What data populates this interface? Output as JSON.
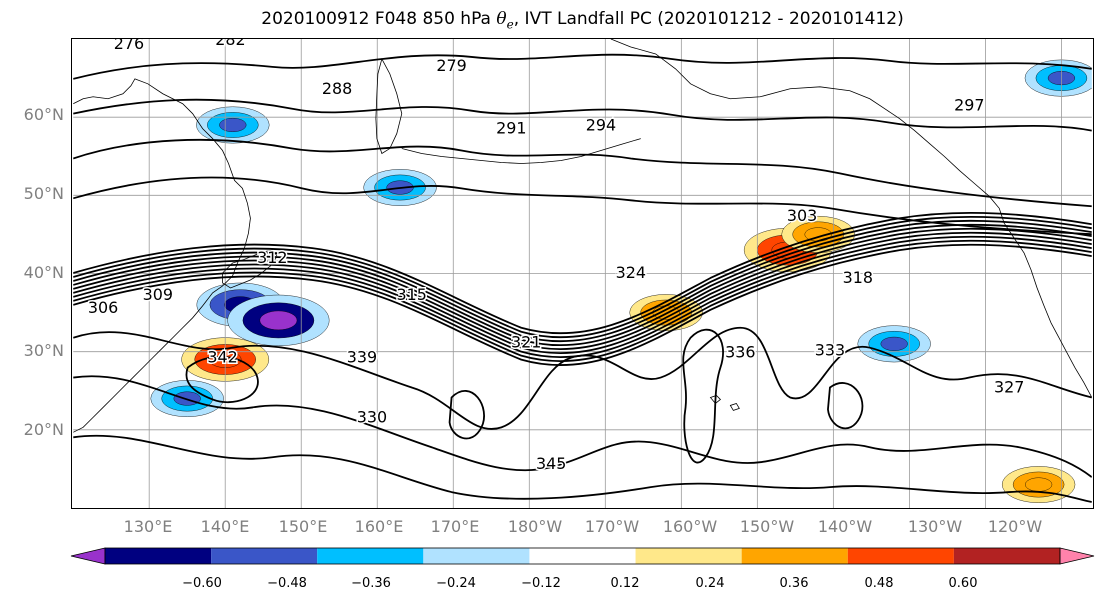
{
  "figure": {
    "title_prefix": "2020100912 F048 850 hPa ",
    "theta_symbol": "θ",
    "theta_subscript": "e",
    "title_suffix": ", IVT Landfall PC (2020101212 - 2020101412)"
  },
  "map": {
    "projection": "equidistant cylindrical",
    "lon_range_east": [
      120,
      254
    ],
    "lat_range": [
      10,
      70
    ],
    "grid": true,
    "coastline_color": "#000000",
    "latitude_labels": [
      "20°N",
      "30°N",
      "40°N",
      "50°N",
      "60°N"
    ],
    "longitude_labels": [
      "130°E",
      "140°E",
      "150°E",
      "160°E",
      "170°E",
      "180°W",
      "170°W",
      "160°W",
      "150°W",
      "140°W",
      "130°W",
      "120°W"
    ]
  },
  "contours": {
    "field": "850 hPa theta-e",
    "color": "#000000",
    "labeled_values": [
      "276",
      "282",
      "279",
      "288",
      "291",
      "294",
      "297",
      "303",
      "306",
      "309",
      "312",
      "315",
      "318",
      "321",
      "324",
      "327",
      "330",
      "333",
      "336",
      "339",
      "342",
      "345"
    ]
  },
  "colorbar": {
    "extend": "both",
    "tick_labels": [
      "−0.60",
      "−0.48",
      "−0.36",
      "−0.24",
      "−0.12",
      "0.12",
      "0.24",
      "0.36",
      "0.48",
      "0.60"
    ],
    "colors": [
      "#9932cc",
      "#000080",
      "#3a56c8",
      "#00bfff",
      "#b0e2ff",
      "#ffffff",
      "#ffe88a",
      "#ffa500",
      "#ff4500",
      "#b22222",
      "#ff82ab"
    ]
  },
  "chart_data": {
    "type": "heatmap",
    "title": "2020100912 F048 850 hPa θe, IVT Landfall PC (2020101212 - 2020101412)",
    "xlabel": "",
    "ylabel": "",
    "x_ticks": [
      "130°E",
      "140°E",
      "150°E",
      "160°E",
      "170°E",
      "180°W",
      "170°W",
      "160°W",
      "150°W",
      "140°W",
      "130°W",
      "120°W"
    ],
    "y_ticks": [
      "20°N",
      "30°N",
      "40°N",
      "50°N",
      "60°N"
    ],
    "xlim_deg_east": [
      120,
      254
    ],
    "ylim_deg_north": [
      10,
      70
    ],
    "color_levels": [
      -0.6,
      -0.48,
      -0.36,
      -0.24,
      -0.12,
      0.12,
      0.24,
      0.36,
      0.48,
      0.6
    ],
    "contour_labels": [
      276,
      279,
      282,
      288,
      291,
      294,
      297,
      303,
      306,
      309,
      312,
      315,
      318,
      321,
      324,
      327,
      330,
      333,
      336,
      339,
      342,
      345
    ],
    "shaded_anomalies": [
      {
        "lon": 141,
        "lat": 59,
        "value": -0.36
      },
      {
        "lon": 163,
        "lat": 51,
        "value": -0.36
      },
      {
        "lon": 142,
        "lat": 36,
        "value": -0.48
      },
      {
        "lon": 147,
        "lat": 34,
        "value": -0.6
      },
      {
        "lon": 135,
        "lat": 24,
        "value": -0.36
      },
      {
        "lon": 214,
        "lat": 43,
        "value": 0.48
      },
      {
        "lon": 218,
        "lat": 45,
        "value": 0.36
      },
      {
        "lon": 198,
        "lat": 35,
        "value": 0.36
      },
      {
        "lon": 140,
        "lat": 29,
        "value": 0.48
      },
      {
        "lon": 247,
        "lat": 13,
        "value": 0.36
      },
      {
        "lon": 228,
        "lat": 31,
        "value": -0.36
      },
      {
        "lon": 250,
        "lat": 65,
        "value": -0.36
      }
    ]
  }
}
